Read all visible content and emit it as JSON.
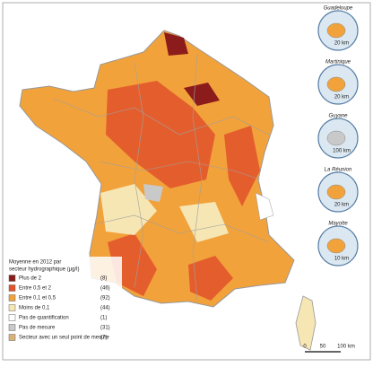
{
  "legend": {
    "title": [
      "Moyenne en 2012 par",
      "secteur hydrographique (µg/l)"
    ],
    "items": [
      {
        "label": "Plus de 2",
        "count": "(8)",
        "color": "#8c1c1c"
      },
      {
        "label": "Entre 0,5 et 2",
        "count": "(46)",
        "color": "#e2522b"
      },
      {
        "label": "Entre 0,1 et 0,5",
        "count": "(92)",
        "color": "#f2a23a"
      },
      {
        "label": "Moins de 0,1",
        "count": "(44)",
        "color": "#f6e6b4"
      },
      {
        "label": "Pas de quantification",
        "count": "(1)",
        "color": "#ffffff"
      },
      {
        "label": "Pas de mesure",
        "count": "(31)",
        "color": "#c9c9c9"
      },
      {
        "label": "Secteur avec un seul point de mesure",
        "count": "(7)",
        "color": "#d9b27a"
      }
    ]
  },
  "insets": [
    {
      "name": "Guadeloupe",
      "scale": "20 km"
    },
    {
      "name": "Martinique",
      "scale": "20 km"
    },
    {
      "name": "Guyane",
      "scale": "100 km"
    },
    {
      "name": "La Réunion",
      "scale": "20 km"
    },
    {
      "name": "Mayotte",
      "scale": "10 km"
    }
  ],
  "scale_bar": {
    "ticks": [
      "0",
      "50",
      "100 km"
    ]
  }
}
